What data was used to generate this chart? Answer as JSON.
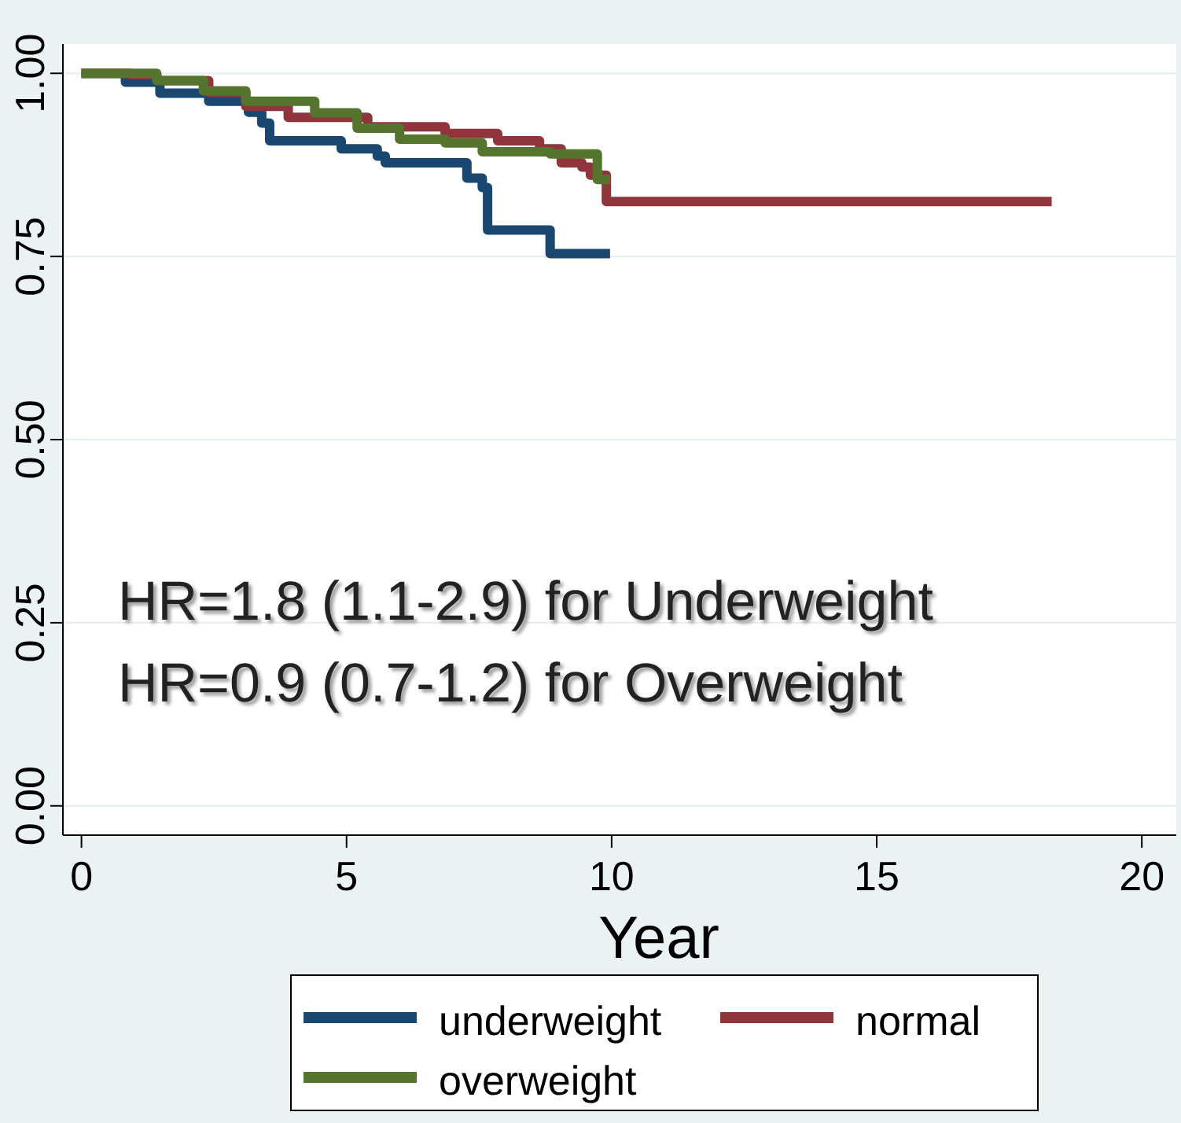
{
  "chart_data": {
    "type": "step",
    "xlabel": "Year",
    "xlim": [
      -0.35,
      20.65
    ],
    "ylim": [
      -0.04,
      1.04
    ],
    "xticks": [
      0,
      5,
      10,
      15,
      20
    ],
    "yticks": [
      {
        "value": 0,
        "label": "0.00"
      },
      {
        "value": 0.25,
        "label": "0.25"
      },
      {
        "value": 0.5,
        "label": "0.50"
      },
      {
        "value": 0.75,
        "label": "0.75"
      },
      {
        "value": 1,
        "label": "1.00"
      }
    ],
    "grid": "y",
    "legend": "bottom",
    "line_style": "solid",
    "series": [
      {
        "name": "underweight",
        "color": "#1a476f",
        "x": [
          0,
          0.83,
          1.48,
          2.4,
          3.15,
          3.4,
          3.55,
          4.9,
          5.58,
          5.73,
          7.27,
          7.56,
          7.66,
          8.84,
          9.97
        ],
        "values": [
          1.0,
          0.988,
          0.973,
          0.962,
          0.947,
          0.932,
          0.908,
          0.897,
          0.887,
          0.878,
          0.857,
          0.844,
          0.786,
          0.754,
          0.754
        ]
      },
      {
        "name": "normal",
        "color": "#90353b",
        "x": [
          0,
          0.92,
          1.42,
          2.4,
          3.1,
          3.9,
          5.4,
          6.86,
          7.85,
          8.64,
          9.05,
          9.44,
          9.6,
          9.9,
          18.3
        ],
        "values": [
          1.0,
          0.998,
          0.99,
          0.974,
          0.955,
          0.94,
          0.927,
          0.918,
          0.908,
          0.897,
          0.878,
          0.872,
          0.861,
          0.825,
          0.825
        ]
      },
      {
        "name": "overweight",
        "color": "#55752f",
        "x": [
          0,
          0.92,
          1.42,
          2.3,
          3.1,
          4.4,
          5.2,
          6.0,
          6.86,
          7.56,
          8.84,
          9.73,
          9.97
        ],
        "values": [
          1.0,
          1.0,
          0.99,
          0.976,
          0.962,
          0.946,
          0.925,
          0.91,
          0.905,
          0.893,
          0.89,
          0.855,
          0.855
        ]
      }
    ],
    "annotations": [
      "HR=1.8 (1.1-2.9) for Underweight",
      "HR=0.9 (0.7-1.2) for Overweight"
    ]
  }
}
